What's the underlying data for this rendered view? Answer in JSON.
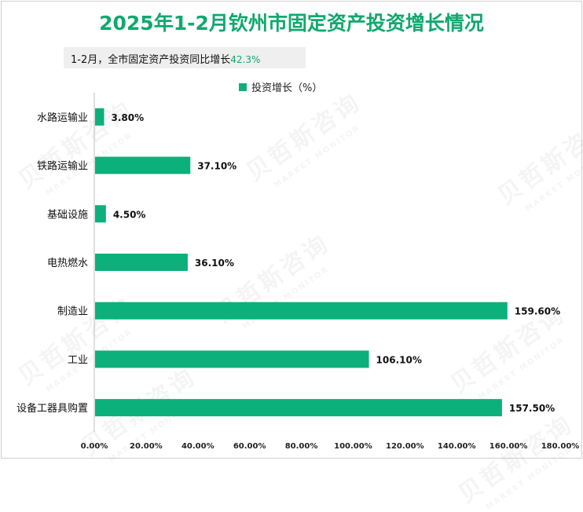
{
  "title": "2025年1-2月钦州市固定资产投资增长情况",
  "subtitle": {
    "label": "1-2月，全市固定资产投资同比增长",
    "value": "42.3%"
  },
  "watermark": {
    "main": "贝哲斯咨询",
    "sub": "MARKET MONITOR"
  },
  "colors": {
    "bar": "#0cb07a",
    "title": "#11a86f"
  },
  "chart_data": {
    "type": "bar",
    "orientation": "horizontal",
    "categories": [
      "水路运输业",
      "铁路运输业",
      "基础设施",
      "电热燃水",
      "制造业",
      "工业",
      "设备工器具购置"
    ],
    "series": [
      {
        "name": "投资增长（%）",
        "values": [
          3.8,
          37.1,
          4.5,
          36.1,
          159.6,
          106.1,
          157.5
        ],
        "labels": [
          "3.80%",
          "37.10%",
          "4.50%",
          "36.10%",
          "159.60%",
          "106.10%",
          "157.50%"
        ]
      }
    ],
    "xlim": [
      0,
      180
    ],
    "xticks": [
      "0.00%",
      "20.00%",
      "40.00%",
      "60.00%",
      "80.00%",
      "100.00%",
      "120.00%",
      "140.00%",
      "160.00%",
      "180.00%"
    ],
    "legend_position": "top-center",
    "grid": false
  }
}
